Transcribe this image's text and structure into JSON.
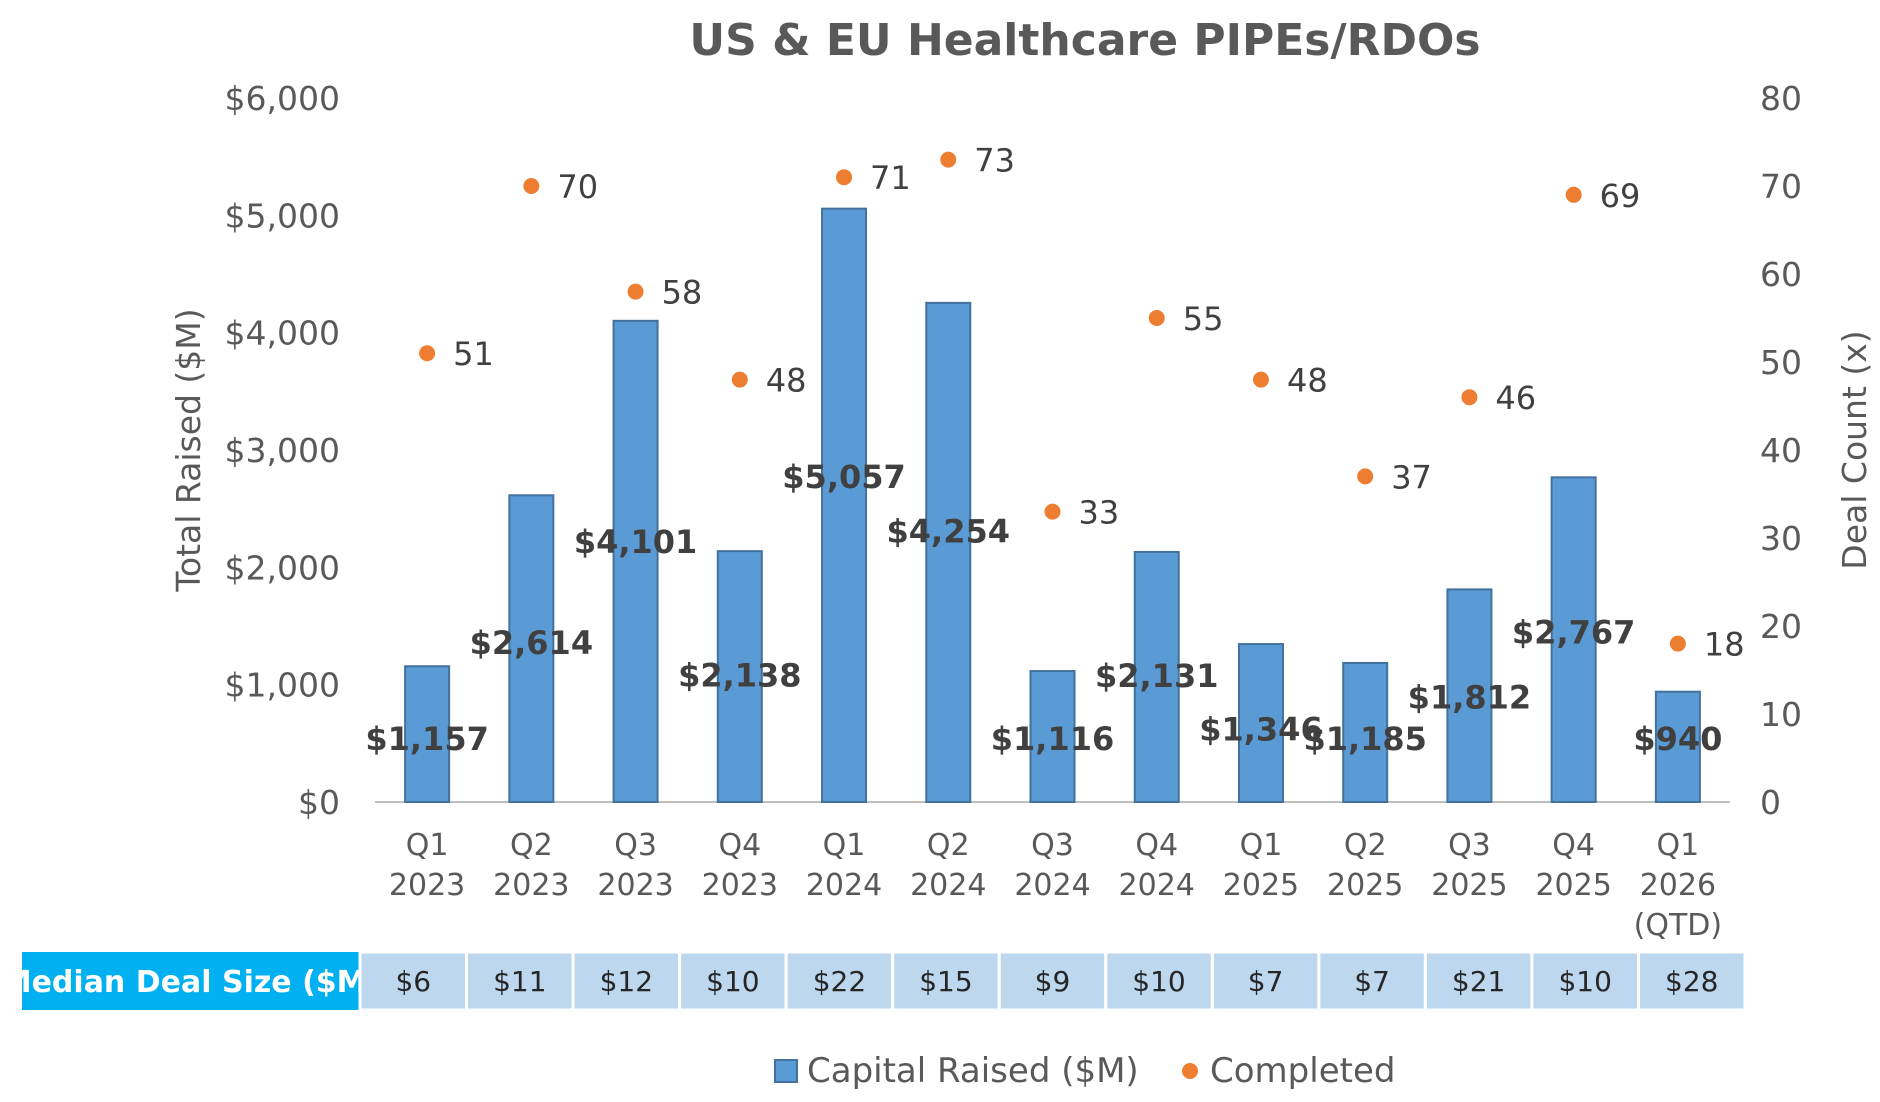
{
  "chart_data": {
    "type": "bar",
    "title": "US & EU Healthcare PIPEs/RDOs",
    "categories": [
      [
        "Q1",
        "2023"
      ],
      [
        "Q2",
        "2023"
      ],
      [
        "Q3",
        "2023"
      ],
      [
        "Q4",
        "2023"
      ],
      [
        "Q1",
        "2024"
      ],
      [
        "Q2",
        "2024"
      ],
      [
        "Q3",
        "2024"
      ],
      [
        "Q4",
        "2024"
      ],
      [
        "Q1",
        "2025"
      ],
      [
        "Q2",
        "2025"
      ],
      [
        "Q3",
        "2025"
      ],
      [
        "Q4",
        "2025"
      ],
      [
        "Q1",
        "2026",
        "(QTD)"
      ]
    ],
    "series": [
      {
        "name": "Capital Raised ($M)",
        "type": "bar",
        "axis": "left",
        "color": "#5b9bd5",
        "values": [
          1157,
          2614,
          4101,
          2138,
          5057,
          4254,
          1116,
          2131,
          1346,
          1185,
          1812,
          2767,
          940
        ],
        "labels": [
          "$1,157",
          "$2,614",
          "$4,101",
          "$2,138",
          "$5,057",
          "$4,254",
          "$1,116",
          "$2,131",
          "$1,346",
          "$1,185",
          "$1,812",
          "$2,767",
          "$940"
        ]
      },
      {
        "name": "Completed",
        "type": "scatter",
        "axis": "right",
        "color": "#ed7d31",
        "values": [
          51,
          70,
          58,
          48,
          71,
          73,
          33,
          55,
          48,
          37,
          46,
          69,
          18
        ],
        "labels": [
          "51",
          "70",
          "58",
          "48",
          "71",
          "73",
          "33",
          "55",
          "48",
          "37",
          "46",
          "69",
          "18"
        ]
      }
    ],
    "ylabel_left": "Total Raised ($M)",
    "ylabel_right": "Deal Count (x)",
    "ylim_left": [
      0,
      6000
    ],
    "ylim_right": [
      0,
      80
    ],
    "yticks_left": [
      "$0",
      "$1,000",
      "$2,000",
      "$3,000",
      "$4,000",
      "$5,000",
      "$6,000"
    ],
    "yticks_right": [
      "0",
      "10",
      "20",
      "30",
      "40",
      "50",
      "60",
      "70",
      "80"
    ],
    "grid": false,
    "legend_position": "bottom",
    "table": {
      "header": "Median Deal Size ($M)",
      "values": [
        "$6",
        "$11",
        "$12",
        "$10",
        "$22",
        "$15",
        "$9",
        "$10",
        "$7",
        "$7",
        "$21",
        "$10",
        "$28"
      ],
      "header_color": "#00b0f0",
      "cell_color": "#bdd7ee"
    }
  }
}
